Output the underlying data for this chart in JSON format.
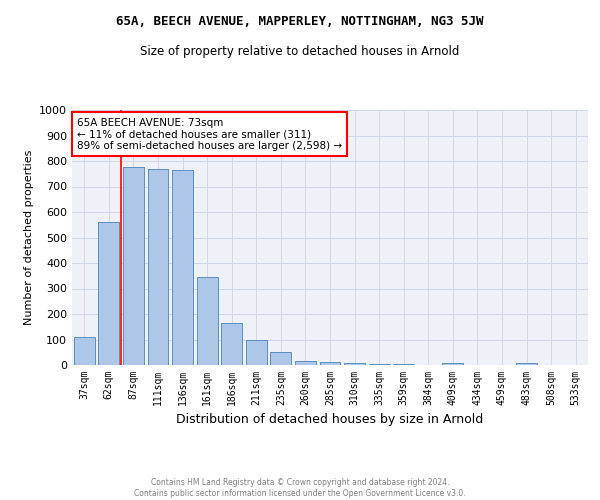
{
  "title": "65A, BEECH AVENUE, MAPPERLEY, NOTTINGHAM, NG3 5JW",
  "subtitle": "Size of property relative to detached houses in Arnold",
  "xlabel": "Distribution of detached houses by size in Arnold",
  "ylabel": "Number of detached properties",
  "footer_line1": "Contains HM Land Registry data © Crown copyright and database right 2024.",
  "footer_line2": "Contains public sector information licensed under the Open Government Licence v3.0.",
  "categories": [
    "37sqm",
    "62sqm",
    "87sqm",
    "111sqm",
    "136sqm",
    "161sqm",
    "186sqm",
    "211sqm",
    "235sqm",
    "260sqm",
    "285sqm",
    "310sqm",
    "335sqm",
    "359sqm",
    "384sqm",
    "409sqm",
    "434sqm",
    "459sqm",
    "483sqm",
    "508sqm",
    "533sqm"
  ],
  "values": [
    110,
    560,
    775,
    770,
    765,
    345,
    165,
    97,
    50,
    15,
    12,
    8,
    5,
    3,
    0,
    8,
    0,
    0,
    8,
    0,
    0
  ],
  "bar_color": "#aec6e8",
  "bar_edge_color": "#5a8fc0",
  "vline_x": 1.5,
  "vline_color": "red",
  "ylim": [
    0,
    1000
  ],
  "yticks": [
    0,
    100,
    200,
    300,
    400,
    500,
    600,
    700,
    800,
    900,
    1000
  ],
  "annotation_text": "65A BEECH AVENUE: 73sqm\n← 11% of detached houses are smaller (311)\n89% of semi-detached houses are larger (2,598) →",
  "annotation_box_color": "white",
  "annotation_box_edge_color": "red",
  "grid_color": "#d0d8e8",
  "background_color": "#eef2f8",
  "title_fontsize": 9,
  "subtitle_fontsize": 8.5
}
